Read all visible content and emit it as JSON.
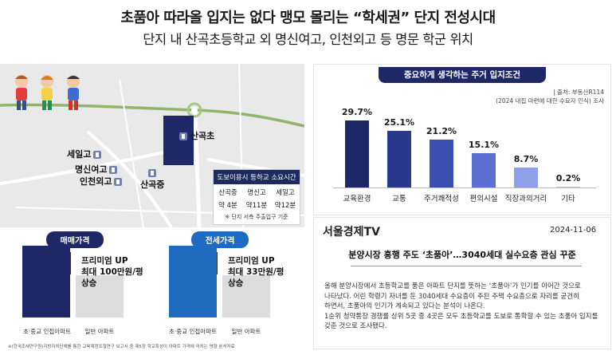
{
  "header": {
    "headline": "초품아 따라올 입지는 없다 맹모 몰리는 “학세권” 단지 전성시대",
    "subhead": "단지 내 산곡초등학교 외 명신여고, 인천외고 등 명문 학군 위치"
  },
  "map": {
    "schools": {
      "sangok_elem": "산곡초",
      "sangok_mid": "산곡중",
      "seil_high": "세일고",
      "myeongsin_girls": "명신여고",
      "incheon_foreign": "인천외고"
    },
    "walk_table": {
      "title": "도보이용시 등하교 소요시간",
      "headers": [
        "산곡중",
        "명신고",
        "세일고"
      ],
      "values": [
        "약 4분",
        "약11분",
        "약12분"
      ],
      "note": "※ 단지 서측 주출입구 기준"
    }
  },
  "price": {
    "sale_tag": "매매가격",
    "jeonse_tag": "전세가격",
    "sale_premium": [
      "프리미엄 UP",
      "최대 100만원/평",
      "상승"
    ],
    "jeonse_premium": [
      "프리미엄 UP",
      "최대 33만원/평",
      "상승"
    ],
    "label_school_apt": "초·중교 인접아파트",
    "label_general_apt": "일반 아파트",
    "footnote": "※(한국조세연구원)지방자치단체를 통한 교육재정조절연구 보고서 중 제5장 학교특성이 아파트 가격에 미치는 영향 분석자료"
  },
  "chart_data": {
    "type": "bar",
    "title": "중요하게 생각하는 주거 입지조건",
    "source_lines": [
      "| 출처: 부동산R114",
      "(2024 내집 마련에 대한 수요자 인식) 조사"
    ],
    "categories": [
      "교육환경",
      "교통",
      "주거쾌적성",
      "편의시설",
      "직장과의거리",
      "기타"
    ],
    "values": [
      29.7,
      25.1,
      21.2,
      15.1,
      8.7,
      0.2
    ],
    "value_labels": [
      "29.7%",
      "25.1%",
      "21.2%",
      "15.1%",
      "8.7%",
      "0.2%"
    ],
    "colors": [
      "#1f2866",
      "#2a3a8a",
      "#3a4fb0",
      "#5b6fd0",
      "#8fa0e8",
      "#c8c8d4"
    ],
    "ylim": [
      0,
      30
    ]
  },
  "news": {
    "source": "서울경제TV",
    "date": "2024-11-06",
    "title": "분양시장 흥행 주도 ‘초품아’…3040세대 실수요층 관심 꾸준",
    "body": [
      "올해 분양시장에서 초등학교를 품은 아파트 단지를 뜻하는 ‘초품아’가 인기를 이어간 것으로",
      "나타났다. 어린 학령기 자녀를 둔 3040세대 수요층이 주된 주택 수요층으로 자리를 굳건히",
      "하면서, 초품아의 인기가 계속되고 있다는 분석이 나온다.",
      "1순위 청약통장 경쟁률 상위 5곳 중 4곳은 모두 초등학교를 도보로 통학할 수 있는 초품아 입지를",
      "갖춘 것으로 조사됐다."
    ]
  }
}
